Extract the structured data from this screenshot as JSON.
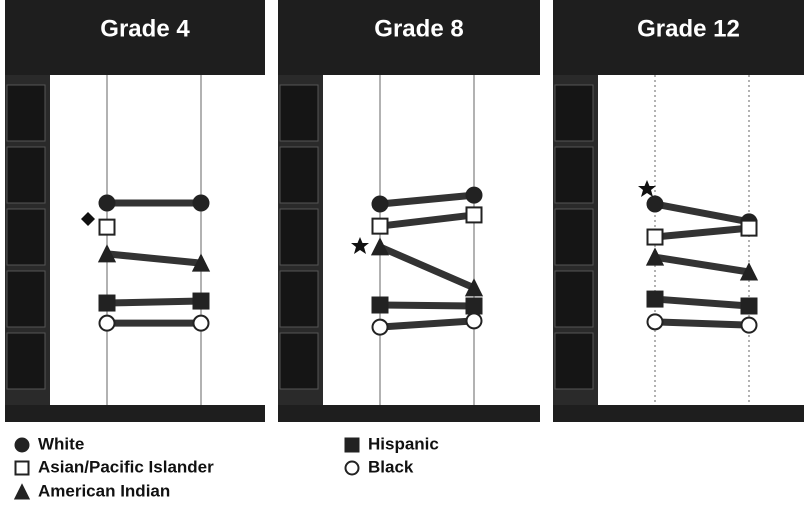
{
  "chart_data": [
    {
      "type": "line",
      "title": "Grade 4",
      "categories": [
        null,
        null
      ],
      "ylim": [
        0,
        100
      ],
      "grid": true,
      "series": [
        {
          "name": "White",
          "color": "#222",
          "marker": "circle",
          "filled": true,
          "values": [
            61.2,
            61.2
          ]
        },
        {
          "name": "Asian/Pacific Islander",
          "color": "#222",
          "marker": "square",
          "filled": false,
          "values": [
            53.9,
            null
          ]
        },
        {
          "name": "American Indian",
          "color": "#222",
          "marker": "triangle",
          "filled": true,
          "values": [
            45.8,
            43.0
          ]
        },
        {
          "name": "Hispanic",
          "color": "#222",
          "marker": "square",
          "filled": true,
          "values": [
            30.9,
            31.5
          ]
        },
        {
          "name": "Black",
          "color": "#222",
          "marker": "circle",
          "filled": false,
          "values": [
            24.8,
            24.8
          ]
        }
      ]
    },
    {
      "type": "line",
      "title": "Grade 8",
      "categories": [
        null,
        null
      ],
      "ylim": [
        0,
        100
      ],
      "grid": true,
      "series": [
        {
          "name": "White",
          "color": "#222",
          "marker": "circle",
          "filled": true,
          "values": [
            60.9,
            63.6
          ]
        },
        {
          "name": "Asian/Pacific Islander",
          "color": "#222",
          "marker": "square",
          "filled": false,
          "values": [
            54.2,
            57.6
          ]
        },
        {
          "name": "American Indian",
          "color": "#222",
          "marker": "triangle",
          "filled": true,
          "values": [
            47.9,
            35.5
          ]
        },
        {
          "name": "Hispanic",
          "color": "#222",
          "marker": "square",
          "filled": true,
          "values": [
            30.3,
            30.0
          ]
        },
        {
          "name": "Black",
          "color": "#222",
          "marker": "circle",
          "filled": false,
          "values": [
            23.6,
            25.5
          ]
        }
      ]
    },
    {
      "type": "line",
      "title": "Grade 12",
      "categories": [
        null,
        null
      ],
      "ylim": [
        0,
        100
      ],
      "grid": true,
      "series": [
        {
          "name": "White",
          "color": "#222",
          "marker": "circle",
          "filled": true,
          "values": [
            60.9,
            55.5
          ]
        },
        {
          "name": "Asian/Pacific Islander",
          "color": "#222",
          "marker": "square",
          "filled": false,
          "values": [
            50.9,
            53.6
          ]
        },
        {
          "name": "American Indian",
          "color": "#222",
          "marker": "triangle",
          "filled": true,
          "values": [
            44.8,
            40.3
          ]
        },
        {
          "name": "Hispanic",
          "color": "#222",
          "marker": "square",
          "filled": true,
          "values": [
            32.1,
            30.0
          ]
        },
        {
          "name": "Black",
          "color": "#222",
          "marker": "circle",
          "filled": false,
          "values": [
            25.2,
            24.2
          ]
        }
      ]
    }
  ]
}
